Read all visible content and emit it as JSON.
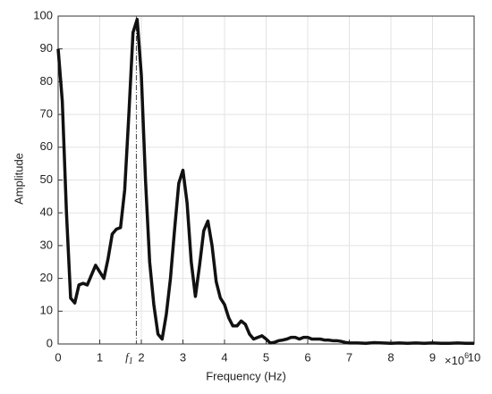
{
  "chart_data": {
    "type": "line",
    "xlabel": "Frequency (Hz)",
    "ylabel": "Amplitude",
    "x_multiplier": {
      "base": "×10",
      "exponent": "6"
    },
    "x": [
      0,
      0.1,
      0.2,
      0.3,
      0.4,
      0.5,
      0.6,
      0.7,
      0.8,
      0.9,
      1.0,
      1.1,
      1.2,
      1.3,
      1.4,
      1.5,
      1.6,
      1.7,
      1.8,
      1.9,
      2.0,
      2.1,
      2.2,
      2.3,
      2.4,
      2.5,
      2.6,
      2.7,
      2.8,
      2.9,
      3.0,
      3.1,
      3.2,
      3.3,
      3.4,
      3.5,
      3.6,
      3.7,
      3.8,
      3.9,
      4.0,
      4.1,
      4.2,
      4.3,
      4.4,
      4.5,
      4.6,
      4.7,
      4.8,
      4.9,
      5.0,
      5.1,
      5.2,
      5.3,
      5.4,
      5.5,
      5.6,
      5.7,
      5.8,
      5.9,
      6.0,
      6.1,
      6.2,
      6.3,
      6.4,
      6.5,
      6.6,
      6.7,
      6.8,
      6.9,
      7.0,
      7.2,
      7.4,
      7.6,
      7.8,
      8.0,
      8.2,
      8.4,
      8.6,
      8.8,
      9.0,
      9.2,
      9.4,
      9.6,
      9.8,
      10.0
    ],
    "values": [
      90,
      74,
      40,
      14,
      12.5,
      18,
      18.5,
      18,
      21,
      24,
      22,
      20,
      26,
      33.5,
      35,
      35.5,
      47,
      70,
      95,
      99,
      82,
      50,
      25,
      12,
      3,
      1.5,
      9,
      20,
      35,
      49,
      53,
      43,
      25,
      14.5,
      24,
      34.5,
      37.5,
      30,
      19,
      14,
      12,
      8,
      5.5,
      5.5,
      7,
      6,
      3,
      1.5,
      2,
      2.5,
      1.5,
      0.3,
      0.5,
      1,
      1.2,
      1.5,
      2,
      2,
      1.5,
      2,
      2,
      1.5,
      1.5,
      1.5,
      1.2,
      1.2,
      1,
      1,
      0.8,
      0.5,
      0.3,
      0.3,
      0.2,
      0.4,
      0.3,
      0.2,
      0.3,
      0.2,
      0.3,
      0.2,
      0.3,
      0.2,
      0.2,
      0.3,
      0.2,
      0.2
    ],
    "color": "#111111",
    "annotations": [
      {
        "text": "f",
        "subscript": "1",
        "x": 1.88
      }
    ],
    "xlim": [
      0,
      10
    ],
    "xticks": [
      0,
      1,
      2,
      3,
      4,
      5,
      6,
      7,
      8,
      9,
      10
    ],
    "ylim": [
      0,
      100
    ],
    "yticks": [
      0,
      10,
      20,
      30,
      40,
      50,
      60,
      70,
      80,
      90,
      100
    ],
    "grid": true
  }
}
